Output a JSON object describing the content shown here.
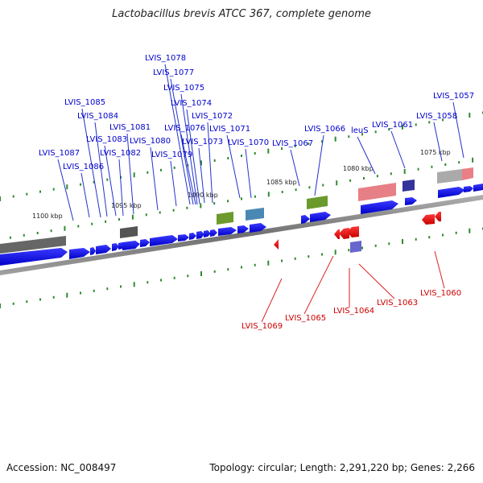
{
  "title": "Lactobacillus brevis ATCC 367, complete genome",
  "footer": {
    "accession": "Accession: NC_008497",
    "topology": "Topology: circular; Length: 2,291,220 bp; Genes: 2,266"
  },
  "colors": {
    "forward_gene": "#0a0adc",
    "reverse_gene": "#e8141e",
    "backbone": "#888888",
    "tick": "#2e8b2e",
    "forward_label": "#0000cc",
    "reverse_label": "#cc0000"
  },
  "kbp_labels": [
    "1100 kbp",
    "1095 kbp",
    "1090 kbp",
    "1085 kbp",
    "1080 kbp",
    "1075 kbp"
  ],
  "forward_labels": [
    "LVIS_1078",
    "LVIS_1077",
    "LVIS_1075",
    "LVIS_1074",
    "LVIS_1085",
    "LVIS_1072",
    "LVIS_1084",
    "LVIS_1081",
    "LVIS_1076",
    "LVIS_1071",
    "LVIS_1066",
    "leuS",
    "LVIS_1061",
    "LVIS_1057",
    "LVIS_1058",
    "LVIS_1083",
    "LVIS_1080",
    "LVIS_1073",
    "LVIS_1070",
    "LVIS_1067",
    "LVIS_1087",
    "LVIS_1082",
    "LVIS_1079",
    "LVIS_1086"
  ],
  "reverse_labels": [
    "LVIS_1069",
    "LVIS_1065",
    "LVIS_1064",
    "LVIS_1063",
    "LVIS_1060"
  ]
}
